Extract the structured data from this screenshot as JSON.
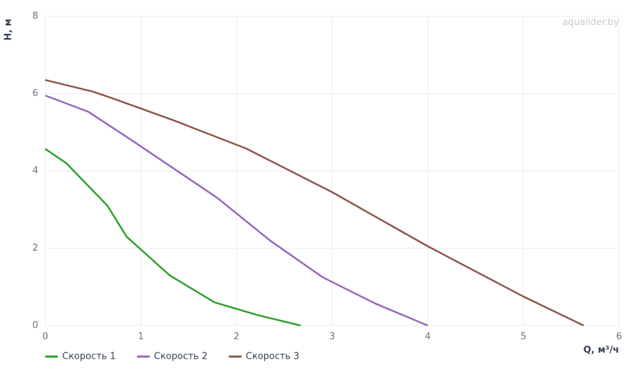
{
  "chart_data": {
    "type": "line",
    "watermark": "aqualider.by",
    "x_label": "Q, м³/ч",
    "y_label": "H, м",
    "xlim": [
      0,
      6
    ],
    "xticks": [
      0,
      1,
      2,
      3,
      4,
      5,
      6
    ],
    "ylim": [
      0,
      8
    ],
    "yticks": [
      0,
      2,
      4,
      6,
      8
    ],
    "grid": true,
    "legend": "bottom-left",
    "series": [
      {
        "name": "Скорость 1",
        "color": "#2ca02c",
        "x": [
          0,
          0.22,
          0.65,
          0.85,
          1.3,
          1.77,
          2.22,
          2.67
        ],
        "values": [
          4.57,
          4.2,
          3.1,
          2.3,
          1.3,
          0.6,
          0.27,
          0
        ]
      },
      {
        "name": "Скорость 2",
        "color": "#9467bd",
        "x": [
          0,
          0.45,
          0.9,
          1.8,
          2.35,
          2.9,
          3.45,
          4
        ],
        "values": [
          5.95,
          5.53,
          4.8,
          3.3,
          2.2,
          1.25,
          0.57,
          0
        ]
      },
      {
        "name": "Скорость 3",
        "color": "#8c564b",
        "x": [
          0,
          0.5,
          0.7,
          1.35,
          2.1,
          3,
          4,
          5,
          5.63
        ],
        "values": [
          6.35,
          6.05,
          5.88,
          5.3,
          4.58,
          3.45,
          2.05,
          0.75,
          0
        ]
      }
    ]
  }
}
